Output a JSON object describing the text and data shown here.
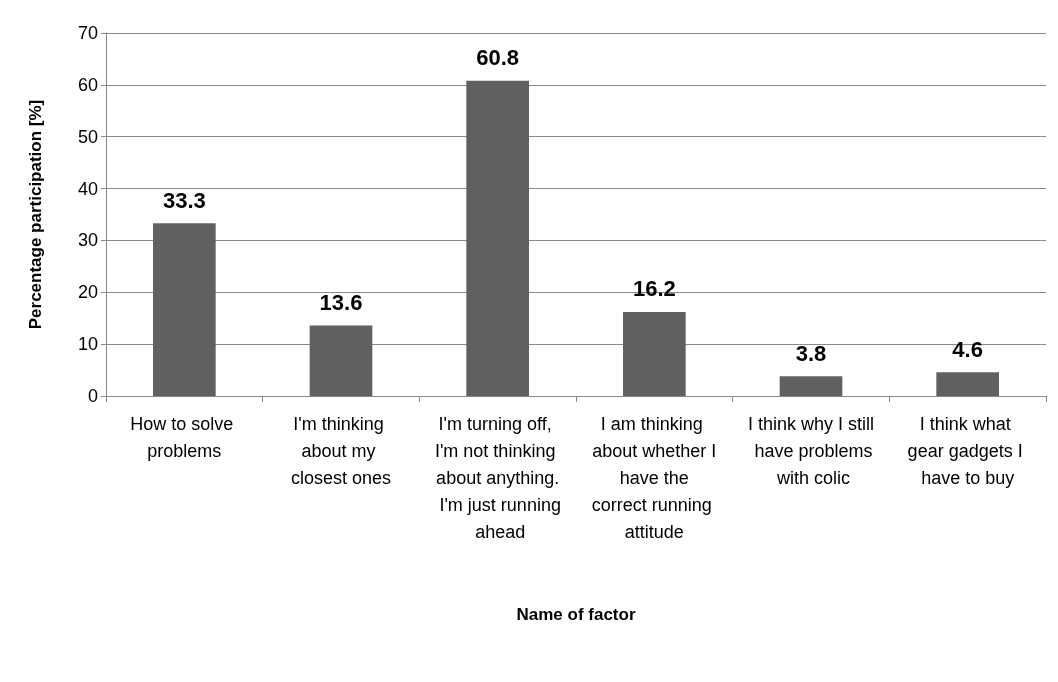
{
  "chart_data": {
    "type": "bar",
    "xlabel": "Name of factor",
    "ylabel": "Percentage participation [%]",
    "categories": [
      "How to solve problems",
      "I'm thinking about my closest ones",
      "I'm turning off, I'm not thinking about anything. I'm just running ahead",
      "I am thinking about whether I have the correct running attitude",
      "I think why I still have problems with colic",
      "I think what gear gadgets I have to buy"
    ],
    "values": [
      33.3,
      13.6,
      60.8,
      16.2,
      3.8,
      4.6
    ],
    "color": "#606060",
    "ylim": [
      0,
      70
    ],
    "yticks": [
      0,
      10,
      20,
      30,
      40,
      50,
      60,
      70
    ],
    "grid": "y",
    "data_labels": true
  }
}
